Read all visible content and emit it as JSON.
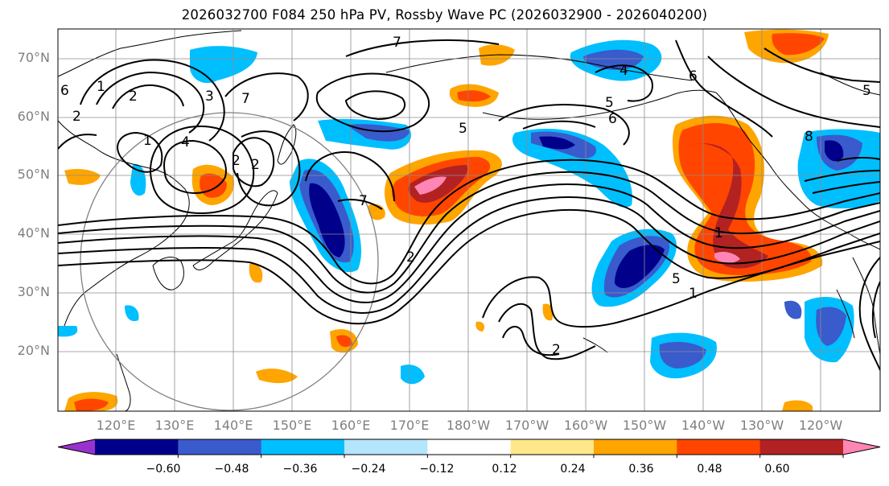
{
  "title": "2026032700 F084 250 hPa PV, Rossby Wave PC (2026032900 - 2026040200)",
  "lat_labels": [
    "70°N",
    "60°N",
    "50°N",
    "40°N",
    "30°N",
    "20°N"
  ],
  "lon_labels": [
    "120°E",
    "130°E",
    "140°E",
    "150°E",
    "160°E",
    "170°E",
    "180°W",
    "170°W",
    "160°W",
    "150°W",
    "140°W",
    "130°W",
    "120°W"
  ],
  "colorbar": {
    "colors": [
      "#9932CC",
      "#00008B",
      "#3A5BCC",
      "#00BFFF",
      "#B3E5FC",
      "#FFFFFF",
      "#FFE88A",
      "#FFA500",
      "#FF4500",
      "#B22222",
      "#FF85B4"
    ],
    "tick_labels": [
      "−0.60",
      "−0.48",
      "−0.36",
      "−0.24",
      "−0.12",
      "0.12",
      "0.24",
      "0.36",
      "0.48",
      "0.60"
    ]
  },
  "contour_labels": [
    "7",
    "7",
    "5",
    "4",
    "5",
    "6",
    "6",
    "5",
    "2",
    "1",
    "4",
    "3",
    "2",
    "1",
    "2",
    "7",
    "2",
    "2",
    "1",
    "2",
    "5",
    "8",
    "1",
    "6"
  ],
  "colors": {
    "land": "#000000",
    "grid": "#8c8c8c"
  }
}
